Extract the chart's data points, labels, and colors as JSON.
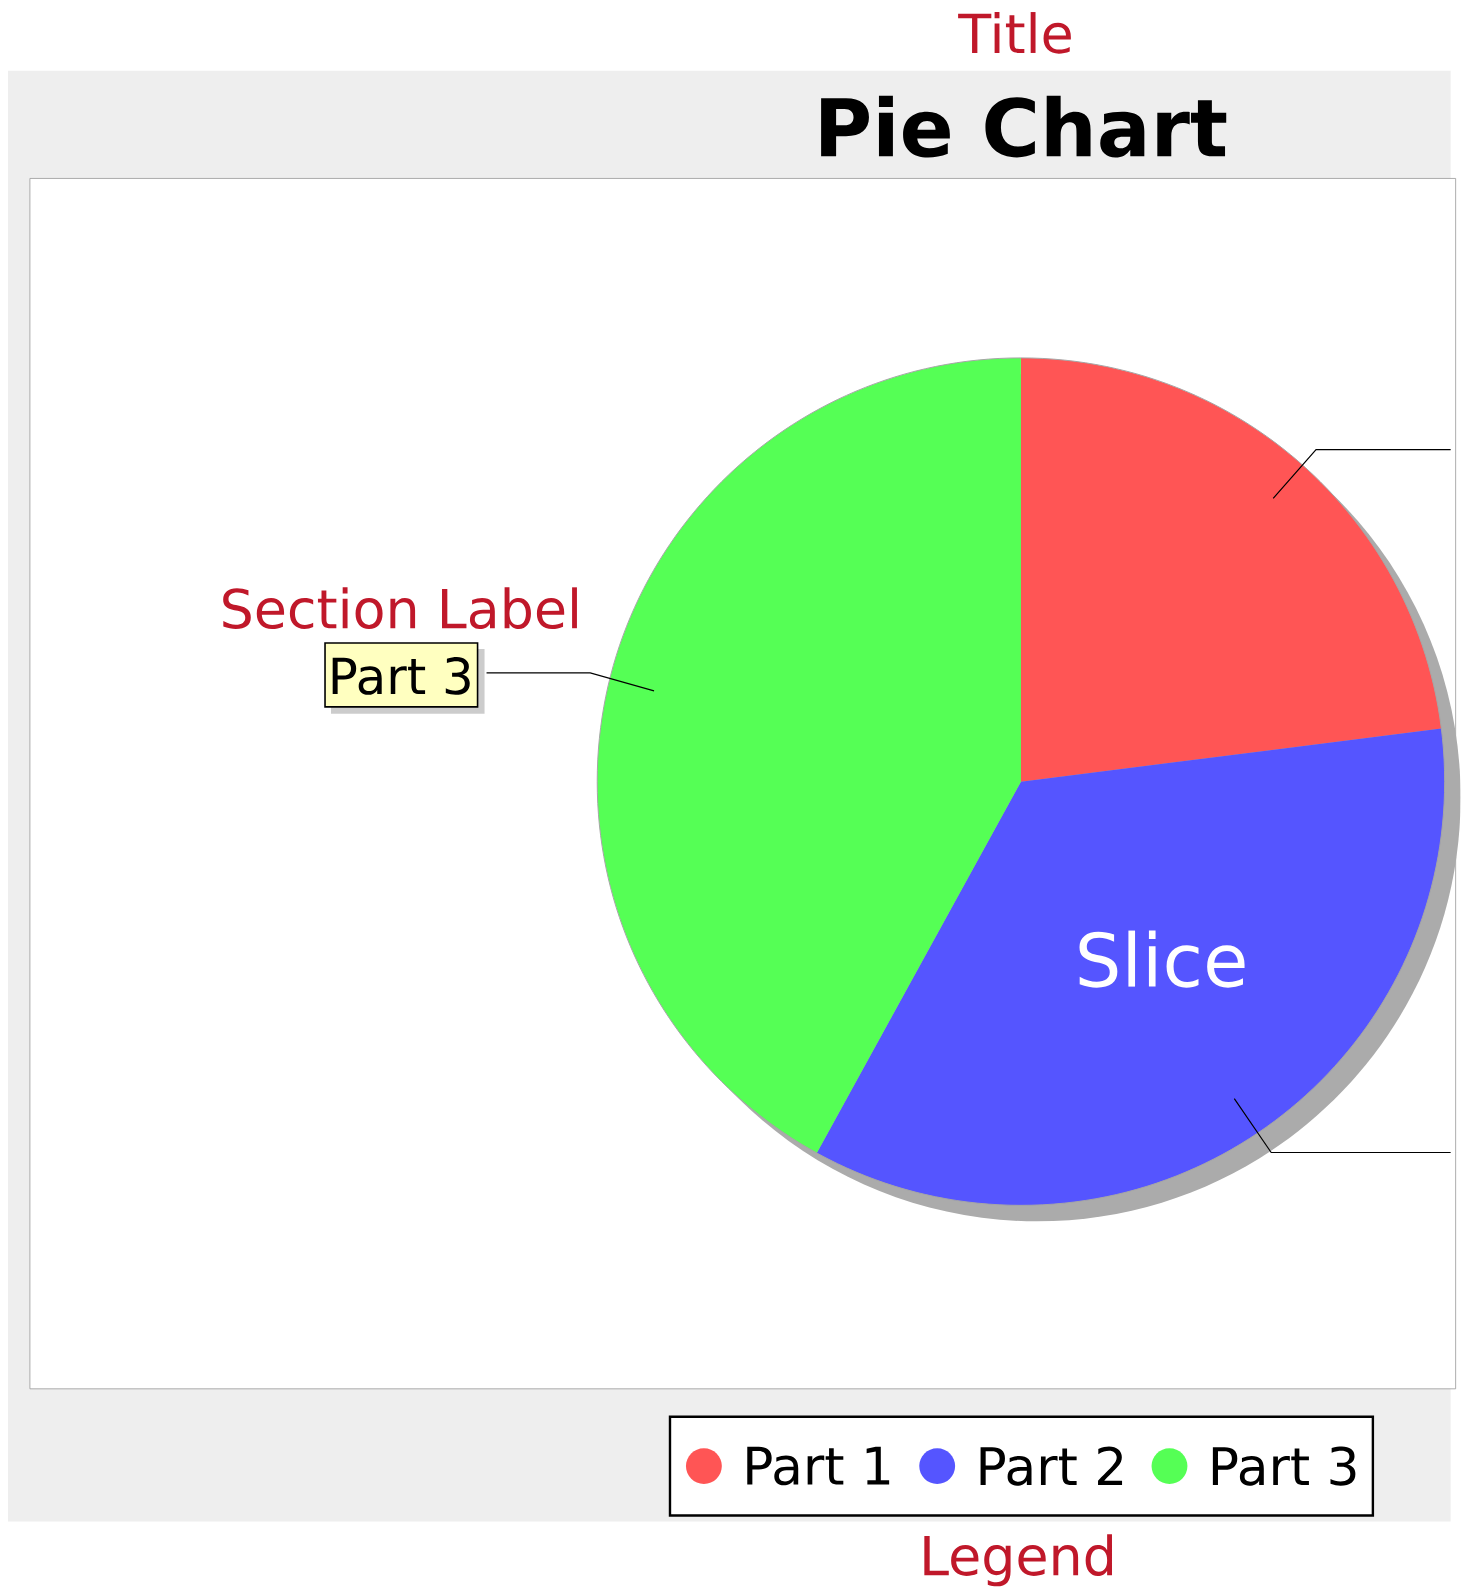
{
  "chart_data": {
    "type": "pie",
    "title": "Pie Chart",
    "categories": [
      "Part 1",
      "Part 2",
      "Part 3"
    ],
    "values": [
      23,
      35,
      42
    ],
    "colors": [
      "#ff5555",
      "#5555ff",
      "#55ff55"
    ],
    "legend": "bottom",
    "annotations": [
      "Title",
      "Section Label",
      "Slice",
      "Legend"
    ]
  }
}
